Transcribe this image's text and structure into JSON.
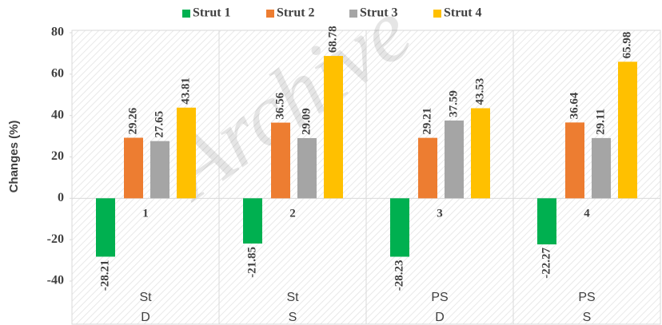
{
  "chart_data": {
    "type": "bar",
    "y_label": "Changes (%)",
    "watermark": "Archive",
    "group_numbers": [
      "1",
      "2",
      "3",
      "4"
    ],
    "categories": [
      [
        "St",
        "D"
      ],
      [
        "St",
        "S"
      ],
      [
        "PS",
        "D"
      ],
      [
        "PS",
        "S"
      ]
    ],
    "series": [
      {
        "name": "Strut 1",
        "color": "#00b050",
        "values": [
          -28.21,
          -21.85,
          -28.23,
          -22.27
        ]
      },
      {
        "name": "Strut 2",
        "color": "#ed7d31",
        "values": [
          29.26,
          36.56,
          29.21,
          36.64
        ]
      },
      {
        "name": "Strut 3",
        "color": "#a5a5a5",
        "values": [
          27.65,
          29.09,
          37.59,
          29.11
        ]
      },
      {
        "name": "Strut 4",
        "color": "#ffc000",
        "values": [
          43.81,
          68.78,
          43.53,
          65.98
        ]
      }
    ],
    "ylim": [
      -40,
      80
    ],
    "yticks": [
      -40,
      -20,
      0,
      20,
      40,
      60,
      80
    ],
    "legend": "top"
  }
}
